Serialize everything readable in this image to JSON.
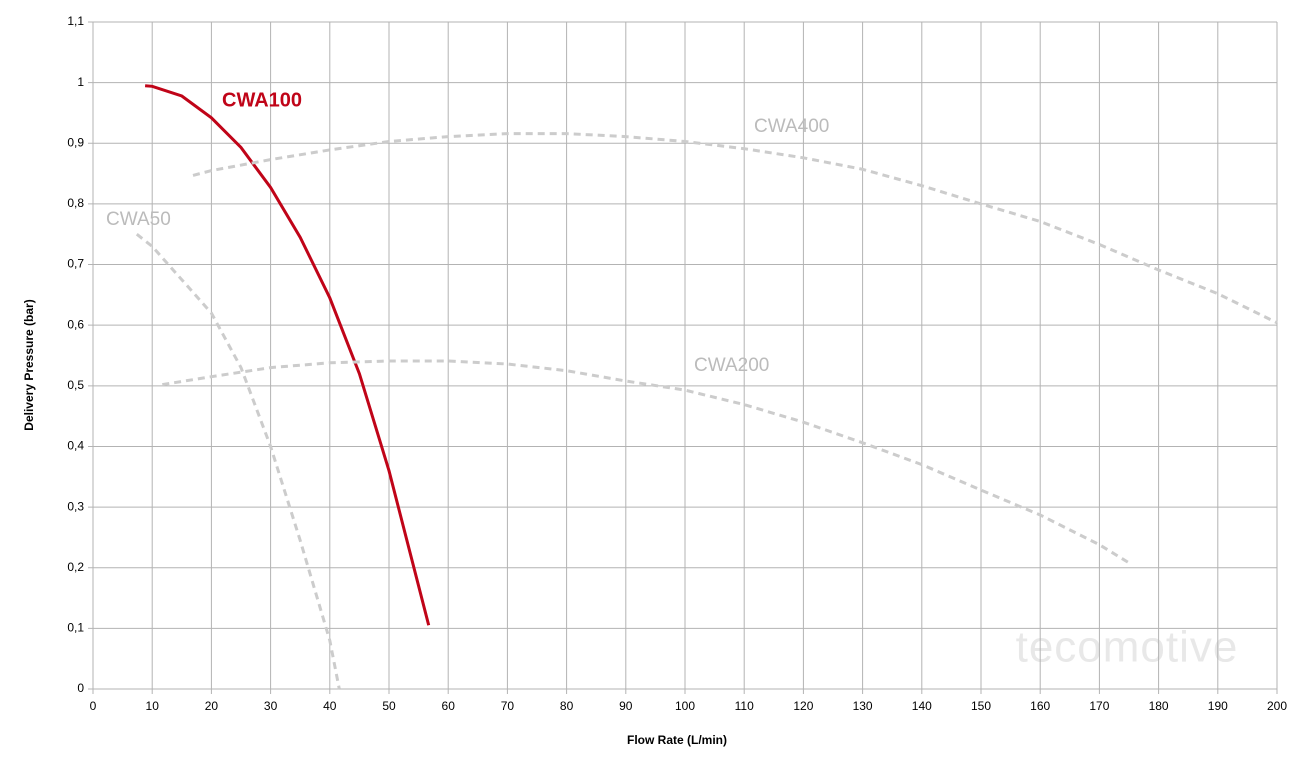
{
  "chart_data": {
    "type": "line",
    "x_label": "Flow Rate (L/min)",
    "y_label": "Delivery Pressure (bar)",
    "watermark": "tecomotive",
    "xlim": [
      0,
      200
    ],
    "xticks": [
      0,
      10,
      20,
      30,
      40,
      50,
      60,
      70,
      80,
      90,
      100,
      110,
      120,
      130,
      140,
      150,
      160,
      170,
      180,
      190,
      200
    ],
    "ylim": [
      0,
      1.1
    ],
    "yticks": [
      0,
      {
        "value": 0.1,
        "label": "0,1"
      },
      {
        "value": 0.2,
        "label": "0,2"
      },
      {
        "value": 0.3,
        "label": "0,3"
      },
      {
        "value": 0.4,
        "label": "0,4"
      },
      {
        "value": 0.5,
        "label": "0,5"
      },
      {
        "value": 0.6,
        "label": "0,6"
      },
      {
        "value": 0.7,
        "label": "0,7"
      },
      {
        "value": 0.8,
        "label": "0,8"
      },
      {
        "value": 0.9,
        "label": "0,9"
      },
      1,
      {
        "value": 1.1,
        "label": "1,1"
      }
    ],
    "grid": true,
    "series": [
      {
        "name": "CWA100",
        "color": "#c00418",
        "dashed": false,
        "x": [
          8.8,
          10,
          15,
          20,
          25,
          30,
          35,
          40,
          45,
          50,
          56.7
        ],
        "values": [
          0.995,
          0.994,
          0.978,
          0.942,
          0.893,
          0.827,
          0.745,
          0.645,
          0.52,
          0.36,
          0.105
        ]
      },
      {
        "name": "CWA400",
        "color": "#cccccc",
        "dashed": true,
        "x": [
          16.9,
          20,
          30,
          40,
          50,
          60,
          70,
          80,
          90,
          100,
          110,
          120,
          130,
          140,
          150,
          160,
          170,
          180,
          190,
          200
        ],
        "values": [
          0.847,
          0.855,
          0.873,
          0.889,
          0.903,
          0.911,
          0.916,
          0.916,
          0.911,
          0.903,
          0.891,
          0.876,
          0.857,
          0.83,
          0.8,
          0.771,
          0.733,
          0.691,
          0.652,
          0.604
        ]
      },
      {
        "name": "CWA50",
        "color": "#cccccc",
        "dashed": true,
        "x": [
          7.4,
          10,
          15,
          20,
          25,
          30,
          35,
          40,
          41.6
        ],
        "values": [
          0.75,
          0.73,
          0.675,
          0.62,
          0.53,
          0.4,
          0.245,
          0.08,
          0
        ]
      },
      {
        "name": "CWA200",
        "color": "#cccccc",
        "dashed": true,
        "x": [
          11.7,
          20,
          30,
          40,
          50,
          60,
          70,
          80,
          90,
          100,
          110,
          120,
          130,
          140,
          150,
          160,
          170,
          175.5
        ],
        "values": [
          0.502,
          0.515,
          0.53,
          0.538,
          0.541,
          0.541,
          0.536,
          0.525,
          0.508,
          0.493,
          0.469,
          0.44,
          0.406,
          0.37,
          0.328,
          0.287,
          0.238,
          0.205
        ]
      }
    ]
  }
}
